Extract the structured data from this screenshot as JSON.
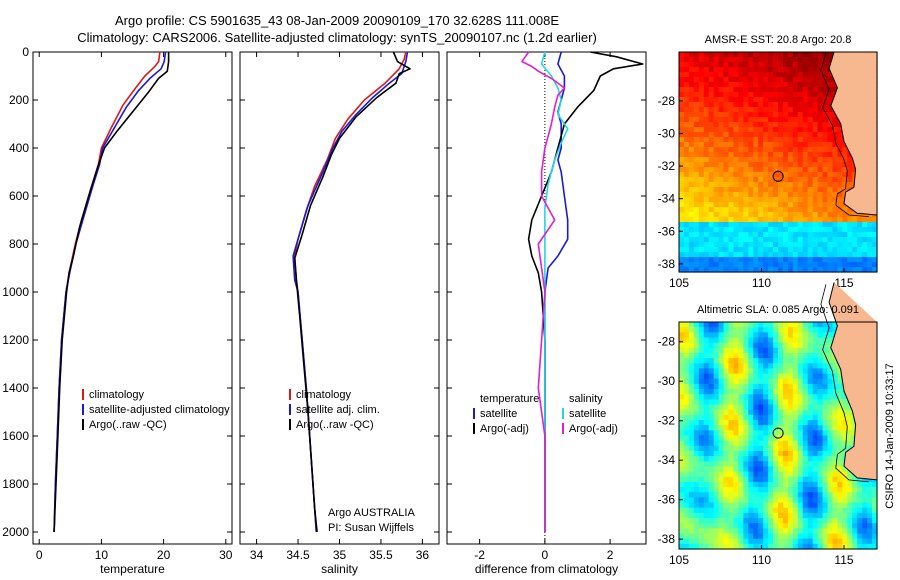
{
  "header": {
    "line1": "Argo profile: CS 5901635_43 08-Jan-2009 20090109_170 32.628S 111.008E",
    "line2": "Climatology: CARS2006. Satellite-adjusted climatology: synTS_20090107.nc (1.2d earlier)"
  },
  "side_label": "CSIRO 14-Jan-2009 10:33:17",
  "colors": {
    "climatology": "#e01818",
    "satellite": "#1a1ad6",
    "argo": "#000000",
    "cyan": "#22d8e6",
    "magenta": "#e020d0",
    "land": "#f7b88f",
    "coast": "#000000"
  },
  "chart_data": [
    {
      "type": "line",
      "xlabel": "temperature",
      "xlim": [
        -1,
        31
      ],
      "xticks": [
        0,
        10,
        20,
        30
      ],
      "ylim": [
        2050,
        0
      ],
      "yticks": [
        0,
        200,
        400,
        600,
        800,
        1000,
        1200,
        1400,
        1600,
        1800,
        2000
      ],
      "legend": {
        "placement": "lower-right",
        "entries": [
          "climatology",
          "satellite-adjusted climatology",
          "Argo(..raw -QC)"
        ]
      },
      "series": [
        {
          "name": "climatology",
          "color_key": "climatology",
          "points": [
            [
              19.4,
              0
            ],
            [
              19.2,
              40
            ],
            [
              18.6,
              60
            ],
            [
              17,
              100
            ],
            [
              15.5,
              150
            ],
            [
              13.5,
              220
            ],
            [
              11.5,
              320
            ],
            [
              10,
              400
            ],
            [
              9.5,
              470
            ],
            [
              8.4,
              560
            ],
            [
              6.8,
              700
            ],
            [
              5.8,
              800
            ],
            [
              4.8,
              920
            ],
            [
              4.3,
              1000
            ],
            [
              3.6,
              1200
            ],
            [
              3.2,
              1400
            ],
            [
              2.9,
              1600
            ],
            [
              2.6,
              1800
            ],
            [
              2.4,
              2000
            ]
          ]
        },
        {
          "name": "satellite-adjusted climatology",
          "color_key": "satellite",
          "points": [
            [
              20.3,
              0
            ],
            [
              20.1,
              40
            ],
            [
              19.6,
              70
            ],
            [
              17.8,
              110
            ],
            [
              16,
              160
            ],
            [
              14,
              230
            ],
            [
              12,
              320
            ],
            [
              10.2,
              400
            ],
            [
              9.7,
              470
            ],
            [
              8.6,
              560
            ],
            [
              7,
              700
            ],
            [
              5.9,
              800
            ],
            [
              4.9,
              920
            ],
            [
              4.3,
              1000
            ],
            [
              3.6,
              1200
            ],
            [
              3.2,
              1400
            ],
            [
              2.9,
              1600
            ],
            [
              2.6,
              1800
            ],
            [
              2.4,
              2000
            ]
          ]
        },
        {
          "name": "Argo(..raw -QC)",
          "color_key": "argo",
          "points": [
            [
              20.8,
              0
            ],
            [
              20.8,
              40
            ],
            [
              20.6,
              80
            ],
            [
              19.2,
              110
            ],
            [
              17.5,
              170
            ],
            [
              15,
              250
            ],
            [
              12.5,
              330
            ],
            [
              10.5,
              400
            ],
            [
              9.4,
              480
            ],
            [
              8.2,
              580
            ],
            [
              6.5,
              730
            ],
            [
              5.5,
              850
            ],
            [
              4.8,
              920
            ],
            [
              4.4,
              1000
            ],
            [
              3.7,
              1200
            ],
            [
              3.3,
              1400
            ],
            [
              3,
              1600
            ],
            [
              2.7,
              1800
            ],
            [
              2.4,
              2000
            ]
          ]
        }
      ]
    },
    {
      "type": "line",
      "xlabel": "salinity",
      "xlim": [
        33.8,
        36.2
      ],
      "xticks": [
        34,
        34.5,
        35,
        35.5,
        36
      ],
      "ylim": [
        2050,
        0
      ],
      "legend": {
        "placement": "lower-right",
        "entries": [
          "climatology",
          "satellite adj. clim.",
          "Argo(..raw -QC)"
        ]
      },
      "annotation": [
        "Argo AUSTRALIA",
        "PI: Susan Wijffels"
      ],
      "series": [
        {
          "name": "climatology",
          "color_key": "climatology",
          "points": [
            [
              35.8,
              0
            ],
            [
              35.78,
              30
            ],
            [
              35.72,
              70
            ],
            [
              35.55,
              130
            ],
            [
              35.3,
              200
            ],
            [
              35.1,
              280
            ],
            [
              34.95,
              360
            ],
            [
              34.85,
              450
            ],
            [
              34.7,
              560
            ],
            [
              34.6,
              660
            ],
            [
              34.5,
              780
            ],
            [
              34.46,
              850
            ],
            [
              34.48,
              950
            ],
            [
              34.5,
              1000
            ],
            [
              34.55,
              1200
            ],
            [
              34.6,
              1400
            ],
            [
              34.64,
              1600
            ],
            [
              34.68,
              1800
            ],
            [
              34.72,
              2000
            ]
          ]
        },
        {
          "name": "satellite adj. clim.",
          "color_key": "satellite",
          "points": [
            [
              35.82,
              0
            ],
            [
              35.8,
              40
            ],
            [
              35.75,
              90
            ],
            [
              35.6,
              130
            ],
            [
              35.4,
              190
            ],
            [
              35.2,
              260
            ],
            [
              35.03,
              330
            ],
            [
              34.92,
              400
            ],
            [
              34.8,
              500
            ],
            [
              34.62,
              640
            ],
            [
              34.5,
              780
            ],
            [
              34.44,
              850
            ],
            [
              34.46,
              950
            ],
            [
              34.5,
              1000
            ],
            [
              34.55,
              1200
            ],
            [
              34.6,
              1400
            ],
            [
              34.64,
              1600
            ],
            [
              34.68,
              1800
            ],
            [
              34.72,
              2000
            ]
          ]
        },
        {
          "name": "Argo(..raw -QC)",
          "color_key": "argo",
          "points": [
            [
              35.65,
              0
            ],
            [
              35.7,
              40
            ],
            [
              35.85,
              70
            ],
            [
              35.72,
              90
            ],
            [
              35.68,
              130
            ],
            [
              35.45,
              190
            ],
            [
              35.2,
              270
            ],
            [
              35,
              360
            ],
            [
              34.9,
              430
            ],
            [
              34.8,
              520
            ],
            [
              34.65,
              640
            ],
            [
              34.55,
              760
            ],
            [
              34.46,
              860
            ],
            [
              34.48,
              950
            ],
            [
              34.52,
              1100
            ],
            [
              34.57,
              1300
            ],
            [
              34.62,
              1500
            ],
            [
              34.66,
              1700
            ],
            [
              34.7,
              1900
            ],
            [
              34.73,
              2000
            ]
          ]
        }
      ]
    },
    {
      "type": "line",
      "xlabel": "difference from climatology",
      "xlim": [
        -3,
        3.1
      ],
      "xticks": [
        -2,
        0,
        2
      ],
      "ylim": [
        2050,
        0
      ],
      "legend": {
        "placement": "lower-right",
        "groups": [
          {
            "header": "temperature",
            "entries": [
              "satellite",
              "Argo(-adj)"
            ]
          },
          {
            "header": "salinity",
            "entries": [
              "satellite",
              "Argo(-adj)"
            ]
          }
        ]
      },
      "series": [
        {
          "name": "temperature satellite",
          "color_key": "satellite",
          "points": [
            [
              0.5,
              0
            ],
            [
              0.4,
              50
            ],
            [
              0.6,
              100
            ],
            [
              0.6,
              150
            ],
            [
              0.5,
              200
            ],
            [
              0.4,
              250
            ],
            [
              0.5,
              300
            ],
            [
              0.5,
              400
            ],
            [
              0.4,
              450
            ],
            [
              0.5,
              500
            ],
            [
              0.6,
              600
            ],
            [
              0.7,
              700
            ],
            [
              0.7,
              780
            ],
            [
              0.4,
              850
            ],
            [
              0.1,
              900
            ],
            [
              0,
              1000
            ],
            [
              0,
              1200
            ],
            [
              0,
              1400
            ],
            [
              0,
              1600
            ],
            [
              0,
              1800
            ],
            [
              0,
              2000
            ]
          ]
        },
        {
          "name": "temperature Argo(-adj)",
          "color_key": "argo",
          "points": [
            [
              1.4,
              0
            ],
            [
              2.2,
              20
            ],
            [
              3,
              50
            ],
            [
              2.1,
              70
            ],
            [
              1.7,
              100
            ],
            [
              1.5,
              160
            ],
            [
              1,
              230
            ],
            [
              0.6,
              300
            ],
            [
              0.4,
              400
            ],
            [
              0.2,
              500
            ],
            [
              -0.1,
              600
            ],
            [
              -0.4,
              700
            ],
            [
              -0.5,
              780
            ],
            [
              -0.4,
              850
            ],
            [
              -0.2,
              920
            ],
            [
              -0.1,
              1000
            ],
            [
              0,
              1200
            ],
            [
              0,
              1400
            ],
            [
              0,
              1600
            ],
            [
              0,
              1800
            ],
            [
              0,
              2000
            ]
          ]
        },
        {
          "name": "salinity satellite",
          "color_key": "cyan",
          "points": [
            [
              0,
              0
            ],
            [
              -0.1,
              50
            ],
            [
              0.2,
              100
            ],
            [
              0.4,
              150
            ],
            [
              0.5,
              200
            ],
            [
              0.4,
              260
            ],
            [
              0.7,
              320
            ],
            [
              0.5,
              380
            ],
            [
              0.3,
              450
            ],
            [
              0.1,
              550
            ],
            [
              0,
              650
            ],
            [
              0,
              800
            ],
            [
              0,
              1000
            ],
            [
              0,
              1200
            ],
            [
              0,
              1500
            ],
            [
              0,
              1800
            ],
            [
              0,
              2000
            ]
          ]
        },
        {
          "name": "salinity Argo(-adj)",
          "color_key": "magenta",
          "points": [
            [
              -0.5,
              0
            ],
            [
              -0.6,
              20
            ],
            [
              -0.7,
              40
            ],
            [
              -0.4,
              60
            ],
            [
              -0.2,
              80
            ],
            [
              0.2,
              110
            ],
            [
              0.6,
              150
            ],
            [
              0.4,
              180
            ],
            [
              0.3,
              230
            ],
            [
              0.2,
              300
            ],
            [
              0,
              400
            ],
            [
              -0.1,
              500
            ],
            [
              -0.1,
              600
            ],
            [
              0.3,
              700
            ],
            [
              -0.2,
              800
            ],
            [
              -0.1,
              900
            ],
            [
              0,
              1000
            ],
            [
              -0.1,
              1200
            ],
            [
              -0.2,
              1400
            ],
            [
              0,
              1600
            ],
            [
              0,
              1800
            ],
            [
              0,
              2000
            ]
          ]
        }
      ]
    },
    {
      "type": "heatmap",
      "title": "AMSR-E SST: 20.8 Argo: 20.8",
      "xlim": [
        105,
        117
      ],
      "ylim": [
        -38.5,
        -25
      ],
      "xticks": [
        105,
        110,
        115
      ],
      "yticks": [
        -28,
        -30,
        -32,
        -34,
        -36,
        -38
      ],
      "marker": {
        "lon": 111.008,
        "lat": -32.628
      }
    },
    {
      "type": "heatmap",
      "title": "Altimetric SLA: 0.085 Argo: 0.091",
      "xlim": [
        105,
        117
      ],
      "ylim": [
        -38.5,
        -27
      ],
      "xticks": [
        105,
        110,
        115
      ],
      "yticks": [
        -28,
        -30,
        -32,
        -34,
        -36,
        -38
      ],
      "marker": {
        "lon": 111.008,
        "lat": -32.628
      }
    }
  ]
}
